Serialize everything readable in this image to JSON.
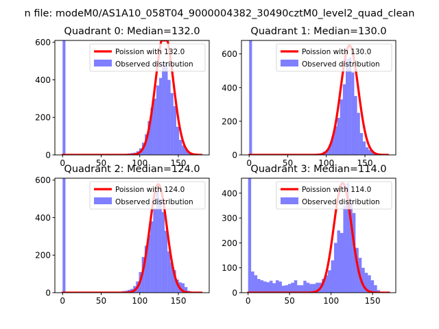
{
  "suptitle": "n file: modeM0/AS1A10_058T04_9000004382_30490cztM0_level2_quad_clean",
  "colors": {
    "hist": "#0000ff",
    "curve": "#ff0000",
    "axis": "#000000"
  },
  "chart_data": [
    {
      "type": "bar",
      "title": "Quadrant 0: Median=132.0",
      "xlim": [
        -10,
        190
      ],
      "ylim": [
        0,
        610
      ],
      "xticks": [
        0,
        50,
        100,
        150
      ],
      "yticks": [
        0,
        200,
        400,
        600
      ],
      "legend_position": "top-right",
      "series": [
        {
          "name": "Poission with 132.0",
          "kind": "line",
          "mean": 132.0,
          "peak": 648,
          "sigma": 11.5,
          "x_range": [
            0,
            180
          ]
        },
        {
          "name": "Observed distribution",
          "kind": "histogram",
          "bins": [
            {
              "x0": 0,
              "x1": 3.7,
              "count": 610
            },
            {
              "x0": 77,
              "x1": 80.7,
              "count": 4
            },
            {
              "x0": 80.7,
              "x1": 84.4,
              "count": 6
            },
            {
              "x0": 84.4,
              "x1": 88.1,
              "count": 8
            },
            {
              "x0": 88.1,
              "x1": 91.8,
              "count": 10
            },
            {
              "x0": 91.8,
              "x1": 95.5,
              "count": 12
            },
            {
              "x0": 95.5,
              "x1": 99.2,
              "count": 20
            },
            {
              "x0": 99.2,
              "x1": 102.9,
              "count": 35
            },
            {
              "x0": 102.9,
              "x1": 106.6,
              "count": 65
            },
            {
              "x0": 106.6,
              "x1": 110.3,
              "count": 110
            },
            {
              "x0": 110.3,
              "x1": 114,
              "count": 180
            },
            {
              "x0": 114,
              "x1": 117.7,
              "count": 250
            },
            {
              "x0": 117.7,
              "x1": 121.4,
              "count": 300
            },
            {
              "x0": 121.4,
              "x1": 125.1,
              "count": 370
            },
            {
              "x0": 125.1,
              "x1": 128.8,
              "count": 410
            },
            {
              "x0": 128.8,
              "x1": 132.5,
              "count": 480
            },
            {
              "x0": 132.5,
              "x1": 136.2,
              "count": 490
            },
            {
              "x0": 136.2,
              "x1": 139.9,
              "count": 400
            },
            {
              "x0": 139.9,
              "x1": 143.6,
              "count": 330
            },
            {
              "x0": 143.6,
              "x1": 147.3,
              "count": 260
            },
            {
              "x0": 147.3,
              "x1": 151,
              "count": 150
            },
            {
              "x0": 151,
              "x1": 154.7,
              "count": 80
            },
            {
              "x0": 154.7,
              "x1": 158.4,
              "count": 50
            },
            {
              "x0": 158.4,
              "x1": 162.1,
              "count": 30
            },
            {
              "x0": 162.1,
              "x1": 165.8,
              "count": 15
            },
            {
              "x0": 165.8,
              "x1": 169.5,
              "count": 8
            },
            {
              "x0": 169.5,
              "x1": 173.2,
              "count": 4
            }
          ]
        }
      ]
    },
    {
      "type": "bar",
      "title": "Quadrant 1: Median=130.0",
      "xlim": [
        -10,
        190
      ],
      "ylim": [
        0,
        680
      ],
      "xticks": [
        0,
        50,
        100,
        150
      ],
      "yticks": [
        0,
        200,
        400,
        600
      ],
      "legend_position": "top-right",
      "series": [
        {
          "name": "Poission with 130.0",
          "kind": "line",
          "mean": 130.0,
          "peak": 650,
          "sigma": 11.4,
          "x_range": [
            0,
            180
          ]
        },
        {
          "name": "Observed distribution",
          "kind": "histogram",
          "bins": [
            {
              "x0": 0,
              "x1": 3.7,
              "count": 680
            },
            {
              "x0": 80.7,
              "x1": 84.4,
              "count": 5
            },
            {
              "x0": 84.4,
              "x1": 88.1,
              "count": 6
            },
            {
              "x0": 88.1,
              "x1": 91.8,
              "count": 8
            },
            {
              "x0": 91.8,
              "x1": 95.5,
              "count": 10
            },
            {
              "x0": 95.5,
              "x1": 99.2,
              "count": 20
            },
            {
              "x0": 99.2,
              "x1": 102.9,
              "count": 30
            },
            {
              "x0": 102.9,
              "x1": 106.6,
              "count": 60
            },
            {
              "x0": 106.6,
              "x1": 110.3,
              "count": 110
            },
            {
              "x0": 110.3,
              "x1": 114,
              "count": 170
            },
            {
              "x0": 114,
              "x1": 117.7,
              "count": 220
            },
            {
              "x0": 117.7,
              "x1": 121.4,
              "count": 330
            },
            {
              "x0": 121.4,
              "x1": 125.1,
              "count": 420
            },
            {
              "x0": 125.1,
              "x1": 128.8,
              "count": 570
            },
            {
              "x0": 128.8,
              "x1": 132.5,
              "count": 580
            },
            {
              "x0": 132.5,
              "x1": 136.2,
              "count": 490
            },
            {
              "x0": 136.2,
              "x1": 139.9,
              "count": 350
            },
            {
              "x0": 139.9,
              "x1": 143.6,
              "count": 250
            },
            {
              "x0": 143.6,
              "x1": 147.3,
              "count": 130
            },
            {
              "x0": 147.3,
              "x1": 151,
              "count": 80
            },
            {
              "x0": 151,
              "x1": 154.7,
              "count": 45
            },
            {
              "x0": 154.7,
              "x1": 158.4,
              "count": 30
            },
            {
              "x0": 158.4,
              "x1": 162.1,
              "count": 20
            },
            {
              "x0": 162.1,
              "x1": 165.8,
              "count": 10
            },
            {
              "x0": 165.8,
              "x1": 169.5,
              "count": 5
            }
          ]
        }
      ]
    },
    {
      "type": "bar",
      "title": "Quadrant 2: Median=124.0",
      "xlim": [
        -10,
        190
      ],
      "ylim": [
        0,
        610
      ],
      "xticks": [
        0,
        50,
        100,
        150
      ],
      "yticks": [
        0,
        200,
        400,
        600
      ],
      "legend_position": "top-right",
      "series": [
        {
          "name": "Poission with 124.0",
          "kind": "line",
          "mean": 124.0,
          "peak": 578,
          "sigma": 11.1,
          "x_range": [
            0,
            180
          ]
        },
        {
          "name": "Observed distribution",
          "kind": "histogram",
          "bins": [
            {
              "x0": 0,
              "x1": 3.7,
              "count": 610
            },
            {
              "x0": 73,
              "x1": 76.7,
              "count": 4
            },
            {
              "x0": 76.7,
              "x1": 80.4,
              "count": 8
            },
            {
              "x0": 80.4,
              "x1": 84.1,
              "count": 10
            },
            {
              "x0": 84.1,
              "x1": 87.8,
              "count": 15
            },
            {
              "x0": 87.8,
              "x1": 91.5,
              "count": 20
            },
            {
              "x0": 91.5,
              "x1": 95.2,
              "count": 35
            },
            {
              "x0": 95.2,
              "x1": 98.9,
              "count": 60
            },
            {
              "x0": 98.9,
              "x1": 102.6,
              "count": 110
            },
            {
              "x0": 102.6,
              "x1": 106.3,
              "count": 190
            },
            {
              "x0": 106.3,
              "x1": 110,
              "count": 250
            },
            {
              "x0": 110,
              "x1": 113.7,
              "count": 310
            },
            {
              "x0": 113.7,
              "x1": 117.4,
              "count": 380
            },
            {
              "x0": 117.4,
              "x1": 121.1,
              "count": 450
            },
            {
              "x0": 121.1,
              "x1": 124.8,
              "count": 540
            },
            {
              "x0": 124.8,
              "x1": 128.5,
              "count": 500
            },
            {
              "x0": 128.5,
              "x1": 132.2,
              "count": 430
            },
            {
              "x0": 132.2,
              "x1": 135.9,
              "count": 330
            },
            {
              "x0": 135.9,
              "x1": 139.6,
              "count": 220
            },
            {
              "x0": 139.6,
              "x1": 143.3,
              "count": 160
            },
            {
              "x0": 143.3,
              "x1": 147,
              "count": 120
            },
            {
              "x0": 147,
              "x1": 150.7,
              "count": 70
            },
            {
              "x0": 150.7,
              "x1": 154.4,
              "count": 55
            },
            {
              "x0": 154.4,
              "x1": 158.1,
              "count": 50
            },
            {
              "x0": 158.1,
              "x1": 161.8,
              "count": 30
            },
            {
              "x0": 161.8,
              "x1": 165.5,
              "count": 10
            },
            {
              "x0": 165.5,
              "x1": 169.2,
              "count": 5
            }
          ]
        }
      ]
    },
    {
      "type": "bar",
      "title": "Quadrant 3: Median=114.0",
      "xlim": [
        -8,
        178
      ],
      "ylim": [
        0,
        460
      ],
      "xticks": [
        0,
        50,
        100,
        150
      ],
      "yticks": [
        0,
        100,
        200,
        300,
        400
      ],
      "legend_position": "top-right",
      "series": [
        {
          "name": "Poission with 114.0",
          "kind": "line",
          "mean": 114.0,
          "peak": 440,
          "sigma": 10.7,
          "x_range": [
            0,
            170
          ]
        },
        {
          "name": "Observed distribution",
          "kind": "histogram",
          "bins": [
            {
              "x0": 0,
              "x1": 3.7,
              "count": 460
            },
            {
              "x0": 3.7,
              "x1": 7.4,
              "count": 85
            },
            {
              "x0": 7.4,
              "x1": 11.1,
              "count": 70
            },
            {
              "x0": 11.1,
              "x1": 14.8,
              "count": 55
            },
            {
              "x0": 14.8,
              "x1": 18.5,
              "count": 50
            },
            {
              "x0": 18.5,
              "x1": 22.2,
              "count": 45
            },
            {
              "x0": 22.2,
              "x1": 25.9,
              "count": 42
            },
            {
              "x0": 25.9,
              "x1": 29.6,
              "count": 48
            },
            {
              "x0": 29.6,
              "x1": 33.3,
              "count": 38
            },
            {
              "x0": 33.3,
              "x1": 37,
              "count": 50
            },
            {
              "x0": 37,
              "x1": 40.7,
              "count": 45
            },
            {
              "x0": 40.7,
              "x1": 44.4,
              "count": 28
            },
            {
              "x0": 44.4,
              "x1": 48.1,
              "count": 30
            },
            {
              "x0": 48.1,
              "x1": 51.8,
              "count": 35
            },
            {
              "x0": 51.8,
              "x1": 55.5,
              "count": 40
            },
            {
              "x0": 55.5,
              "x1": 59.2,
              "count": 50
            },
            {
              "x0": 59.2,
              "x1": 62.9,
              "count": 30
            },
            {
              "x0": 62.9,
              "x1": 66.6,
              "count": 30
            },
            {
              "x0": 66.6,
              "x1": 70.3,
              "count": 48
            },
            {
              "x0": 70.3,
              "x1": 74,
              "count": 40
            },
            {
              "x0": 74,
              "x1": 77.7,
              "count": 35
            },
            {
              "x0": 77.7,
              "x1": 81.4,
              "count": 35
            },
            {
              "x0": 81.4,
              "x1": 85.1,
              "count": 40
            },
            {
              "x0": 85.1,
              "x1": 88.8,
              "count": 40
            },
            {
              "x0": 88.8,
              "x1": 92.5,
              "count": 55
            },
            {
              "x0": 92.5,
              "x1": 96.2,
              "count": 70
            },
            {
              "x0": 96.2,
              "x1": 99.9,
              "count": 90
            },
            {
              "x0": 99.9,
              "x1": 103.6,
              "count": 130
            },
            {
              "x0": 103.6,
              "x1": 107.3,
              "count": 200
            },
            {
              "x0": 107.3,
              "x1": 111,
              "count": 250
            },
            {
              "x0": 111,
              "x1": 114.7,
              "count": 240
            },
            {
              "x0": 114.7,
              "x1": 118.4,
              "count": 350
            },
            {
              "x0": 118.4,
              "x1": 122.1,
              "count": 440
            },
            {
              "x0": 122.1,
              "x1": 125.8,
              "count": 370
            },
            {
              "x0": 125.8,
              "x1": 129.5,
              "count": 320
            },
            {
              "x0": 129.5,
              "x1": 133.2,
              "count": 180
            },
            {
              "x0": 133.2,
              "x1": 136.9,
              "count": 140
            },
            {
              "x0": 136.9,
              "x1": 140.6,
              "count": 100
            },
            {
              "x0": 140.6,
              "x1": 144.3,
              "count": 80
            },
            {
              "x0": 144.3,
              "x1": 148,
              "count": 70
            },
            {
              "x0": 148,
              "x1": 151.7,
              "count": 50
            },
            {
              "x0": 151.7,
              "x1": 155.4,
              "count": 30
            },
            {
              "x0": 155.4,
              "x1": 159.1,
              "count": 10
            }
          ]
        }
      ]
    }
  ]
}
